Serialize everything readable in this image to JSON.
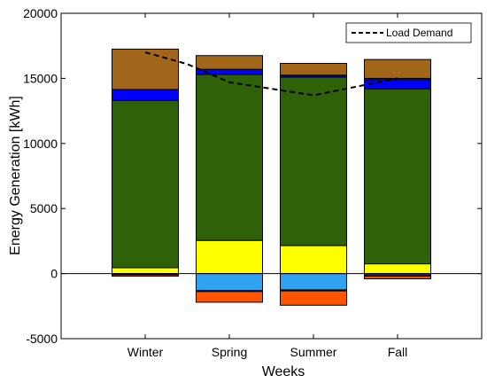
{
  "chart_data": {
    "type": "bar",
    "stacked": true,
    "categories": [
      "Winter",
      "Spring",
      "Summer",
      "Fall"
    ],
    "xlabel": "Weeks",
    "ylabel": "Energy Generation [kWh]",
    "ylim": [
      -5000,
      20000
    ],
    "yticks": [
      -5000,
      0,
      5000,
      10000,
      15000,
      20000
    ],
    "grid": false,
    "legend_position": "top-right",
    "positive_series": [
      {
        "color": "#ffff00",
        "values": [
          450,
          2550,
          2150,
          750
        ]
      },
      {
        "color": "#2f6109",
        "values": [
          12850,
          12750,
          12950,
          13450
        ]
      },
      {
        "color": "#0000ff",
        "values": [
          850,
          400,
          150,
          700
        ]
      },
      {
        "color": "#a2142f",
        "values": [
          0,
          0,
          0,
          100
        ]
      },
      {
        "color": "#a2661a",
        "values": [
          3100,
          1050,
          900,
          1450
        ]
      }
    ],
    "negative_series": [
      {
        "color": "#7e2f8e",
        "values": [
          -50,
          0,
          0,
          0
        ]
      },
      {
        "color": "#30a3f0",
        "values": [
          0,
          -1300,
          -1250,
          -100
        ]
      },
      {
        "color": "#4f2f8e",
        "values": [
          -50,
          -80,
          -80,
          -100
        ]
      },
      {
        "color": "#ff5500",
        "values": [
          -100,
          -820,
          -1100,
          -200
        ]
      }
    ],
    "lines": [
      {
        "name": "Load Demand",
        "style": "dashed",
        "color": "#000000",
        "x": [
          0,
          0.5,
          1,
          2,
          3
        ],
        "y": [
          17000,
          16100,
          14700,
          13700,
          15000
        ]
      }
    ]
  }
}
